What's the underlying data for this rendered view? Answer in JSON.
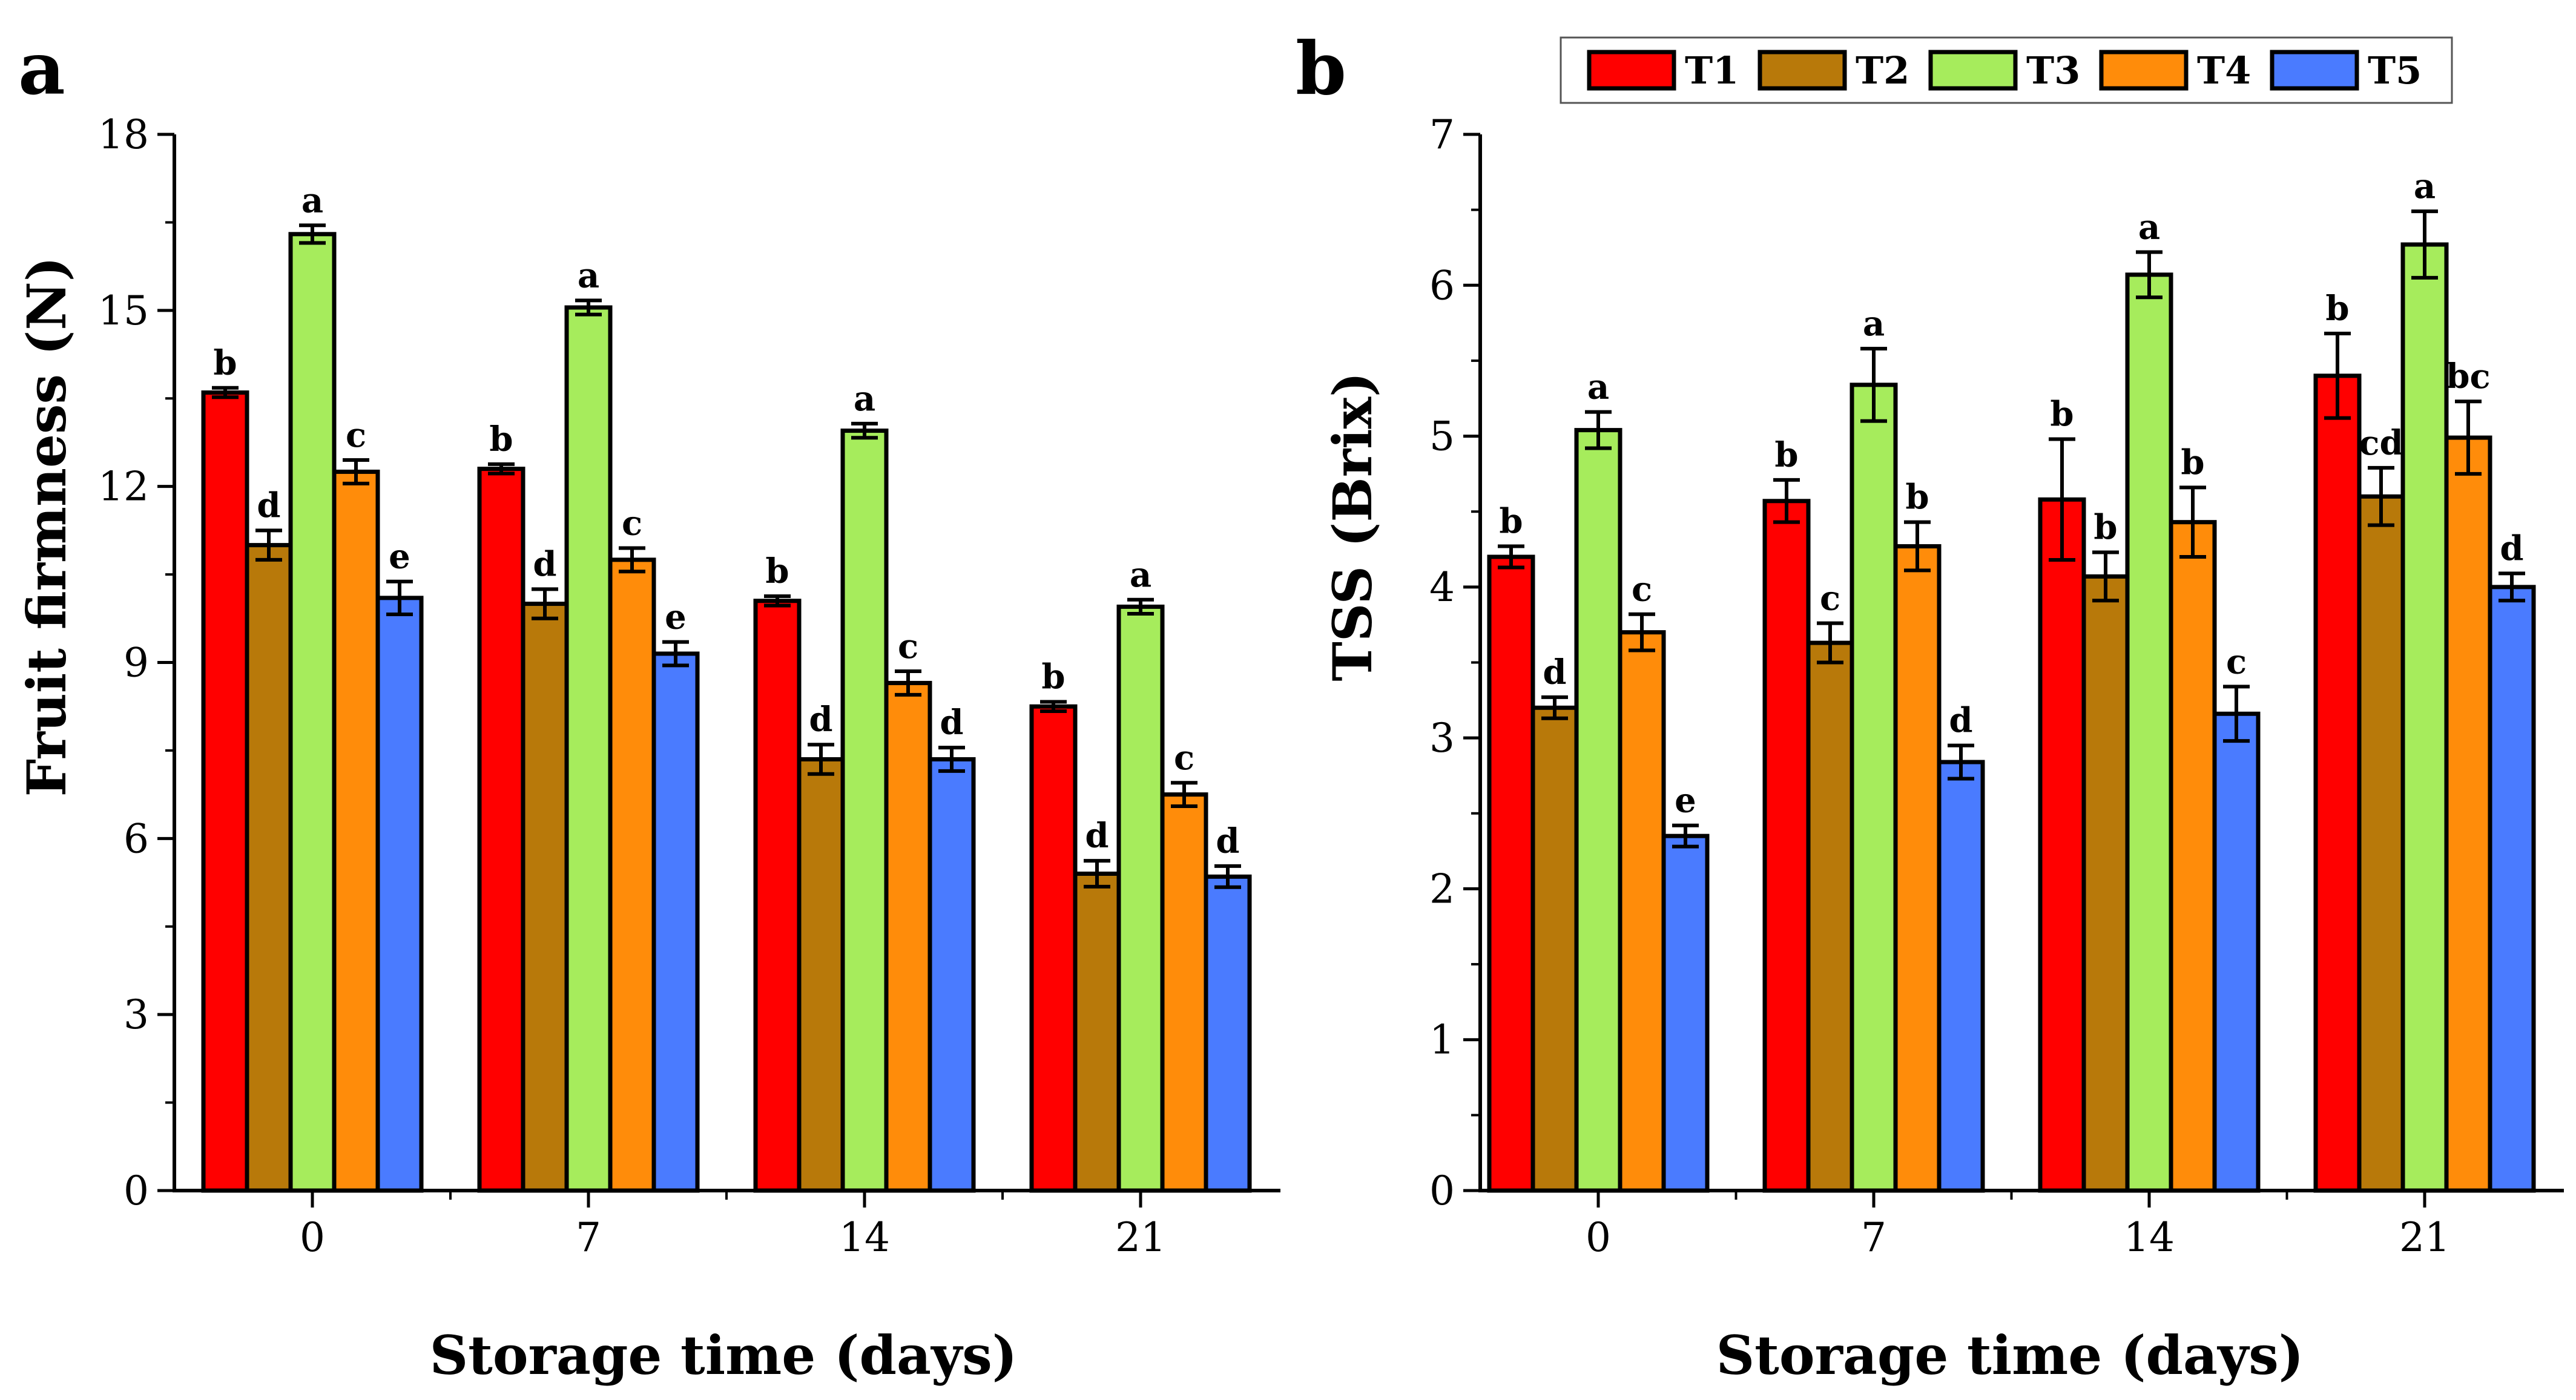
{
  "colors": {
    "T1": "#FF0000",
    "T2": "#B8790A",
    "T3": "#A6EC5C",
    "T4": "#FF8C0A",
    "T5": "#4A7BFF"
  },
  "legend": [
    "T1",
    "T2",
    "T3",
    "T4",
    "T5"
  ],
  "chart_data": [
    {
      "panel": "a",
      "type": "bar",
      "categories": [
        "0",
        "7",
        "14",
        "21"
      ],
      "xlabel": "Storage time (days)",
      "ylabel": "Fruit firmness (N)",
      "ylim": [
        0,
        18
      ],
      "yticks": [
        "0",
        "3",
        "6",
        "9",
        "12",
        "15",
        "18"
      ],
      "series": [
        {
          "name": "T1",
          "values": [
            13.6,
            12.3,
            10.05,
            8.25
          ],
          "errors": [
            0.08,
            0.08,
            0.08,
            0.08
          ],
          "labels": [
            "b",
            "b",
            "b",
            "b"
          ]
        },
        {
          "name": "T2",
          "values": [
            11.0,
            10.0,
            7.35,
            5.4
          ],
          "errors": [
            0.25,
            0.25,
            0.25,
            0.22
          ],
          "labels": [
            "d",
            "d",
            "d",
            "d"
          ]
        },
        {
          "name": "T3",
          "values": [
            16.3,
            15.05,
            12.95,
            9.95
          ],
          "errors": [
            0.15,
            0.12,
            0.12,
            0.12
          ],
          "labels": [
            "a",
            "a",
            "a",
            "a"
          ]
        },
        {
          "name": "T4",
          "values": [
            12.25,
            10.75,
            8.65,
            6.75
          ],
          "errors": [
            0.2,
            0.2,
            0.2,
            0.2
          ],
          "labels": [
            "c",
            "c",
            "c",
            "c"
          ]
        },
        {
          "name": "T5",
          "values": [
            10.1,
            9.15,
            7.35,
            5.35
          ],
          "errors": [
            0.28,
            0.2,
            0.2,
            0.18
          ],
          "labels": [
            "e",
            "e",
            "d",
            "d"
          ]
        }
      ]
    },
    {
      "panel": "b",
      "type": "bar",
      "categories": [
        "0",
        "7",
        "14",
        "21"
      ],
      "xlabel": "Storage time (days)",
      "ylabel": "TSS (Brix)",
      "ylim": [
        0,
        7
      ],
      "yticks": [
        "0",
        "1",
        "2",
        "3",
        "4",
        "5",
        "6",
        "7"
      ],
      "series": [
        {
          "name": "T1",
          "values": [
            4.2,
            4.57,
            4.58,
            5.4
          ],
          "errors": [
            0.07,
            0.14,
            0.4,
            0.28
          ],
          "labels": [
            "b",
            "b",
            "b",
            "b"
          ]
        },
        {
          "name": "T2",
          "values": [
            3.2,
            3.63,
            4.07,
            4.6
          ],
          "errors": [
            0.07,
            0.13,
            0.16,
            0.19
          ],
          "labels": [
            "d",
            "c",
            "b",
            "cd"
          ]
        },
        {
          "name": "T3",
          "values": [
            5.04,
            5.34,
            6.07,
            6.27
          ],
          "errors": [
            0.12,
            0.24,
            0.15,
            0.22
          ],
          "labels": [
            "a",
            "a",
            "a",
            "a"
          ]
        },
        {
          "name": "T4",
          "values": [
            3.7,
            4.27,
            4.43,
            4.99
          ],
          "errors": [
            0.12,
            0.16,
            0.23,
            0.24
          ],
          "labels": [
            "c",
            "b",
            "b",
            "bc"
          ]
        },
        {
          "name": "T5",
          "values": [
            2.35,
            2.84,
            3.16,
            4.0
          ],
          "errors": [
            0.07,
            0.11,
            0.18,
            0.09
          ],
          "labels": [
            "e",
            "d",
            "c",
            "d"
          ]
        }
      ]
    }
  ]
}
